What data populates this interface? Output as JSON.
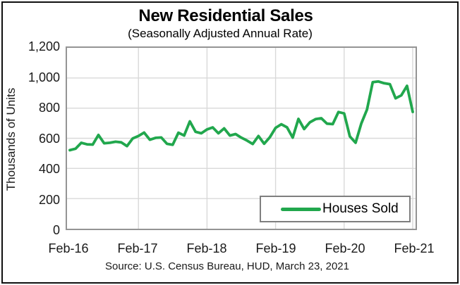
{
  "chart_data": {
    "type": "line",
    "title": "New Residential Sales",
    "subtitle": "(Seasonally Adjusted Annual Rate)",
    "ylabel": "Thousands of Units",
    "xlabel": "",
    "source": "Source:  U.S. Census Bureau, HUD, March 23, 2021",
    "grid": true,
    "legend_position": "inside-bottom-right",
    "ylim": [
      0,
      1200
    ],
    "y_ticks": [
      0,
      200,
      400,
      600,
      800,
      1000,
      1200
    ],
    "y_tick_labels": [
      "0",
      "200",
      "400",
      "600",
      "800",
      "1,000",
      "1,200"
    ],
    "x_tick_labels": [
      "Feb-16",
      "Feb-17",
      "Feb-18",
      "Feb-19",
      "Feb-20",
      "Feb-21"
    ],
    "x": [
      "Feb-16",
      "Mar-16",
      "Apr-16",
      "May-16",
      "Jun-16",
      "Jul-16",
      "Aug-16",
      "Sep-16",
      "Oct-16",
      "Nov-16",
      "Dec-16",
      "Jan-17",
      "Feb-17",
      "Mar-17",
      "Apr-17",
      "May-17",
      "Jun-17",
      "Jul-17",
      "Aug-17",
      "Sep-17",
      "Oct-17",
      "Nov-17",
      "Dec-17",
      "Jan-18",
      "Feb-18",
      "Mar-18",
      "Apr-18",
      "May-18",
      "Jun-18",
      "Jul-18",
      "Aug-18",
      "Sep-18",
      "Oct-18",
      "Nov-18",
      "Dec-18",
      "Jan-19",
      "Feb-19",
      "Mar-19",
      "Apr-19",
      "May-19",
      "Jun-19",
      "Jul-19",
      "Aug-19",
      "Sep-19",
      "Oct-19",
      "Nov-19",
      "Dec-19",
      "Jan-20",
      "Feb-20",
      "Mar-20",
      "Apr-20",
      "May-20",
      "Jun-20",
      "Jul-20",
      "Aug-20",
      "Sep-20",
      "Oct-20",
      "Nov-20",
      "Dec-20",
      "Jan-21",
      "Feb-21"
    ],
    "series": [
      {
        "name": "Houses Sold",
        "color": "#21a74d",
        "values": [
          521,
          531,
          570,
          560,
          558,
          622,
          567,
          570,
          577,
          573,
          548,
          599,
          615,
          638,
          590,
          603,
          605,
          563,
          557,
          637,
          618,
          712,
          643,
          633,
          659,
          672,
          633,
          666,
          618,
          628,
          604,
          585,
          562,
          615,
          564,
          607,
          669,
          693,
          673,
          604,
          729,
          661,
          706,
          727,
          733,
          697,
          694,
          774,
          765,
          612,
          570,
          698,
          791,
          972,
          977,
          965,
          959,
          865,
          885,
          948,
          775
        ]
      }
    ],
    "gridline_color": "#d9d9d9"
  }
}
